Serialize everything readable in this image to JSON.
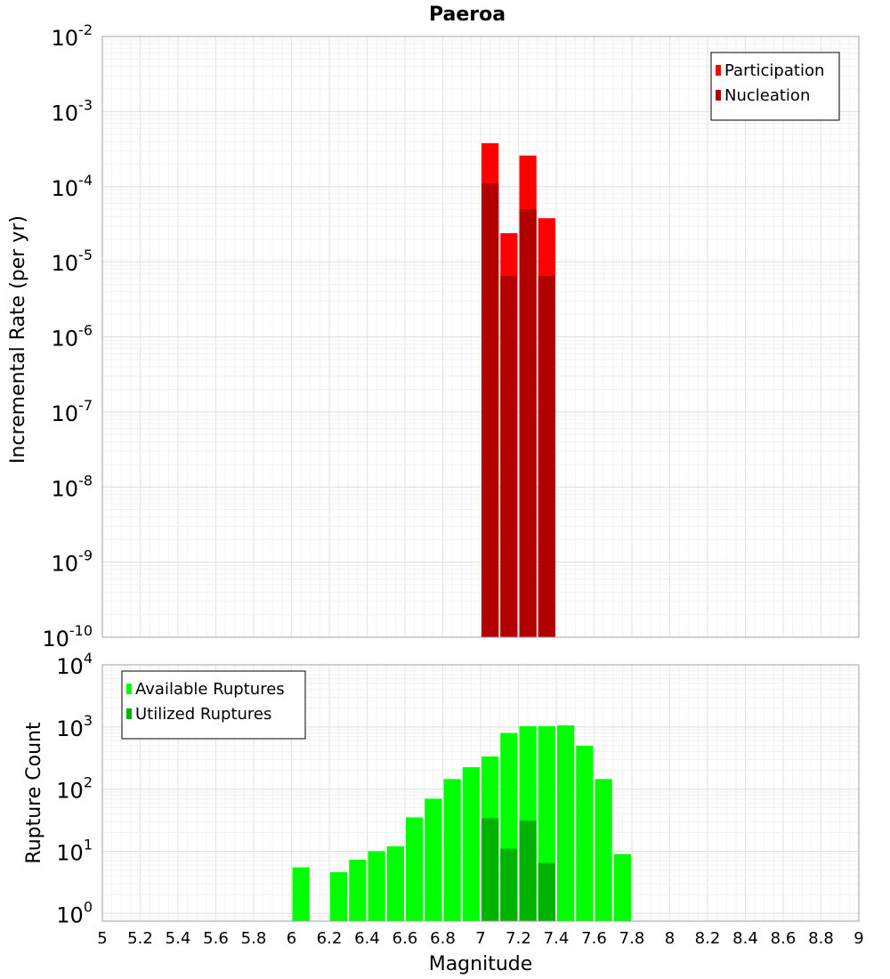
{
  "title": "Paeroa",
  "x_axis": {
    "label": "Magnitude",
    "ticks": [
      "5",
      "5.2",
      "5.4",
      "5.6",
      "5.8",
      "6",
      "6.2",
      "6.4",
      "6.6",
      "6.8",
      "7",
      "7.2",
      "7.4",
      "7.6",
      "7.8",
      "8",
      "8.2",
      "8.4",
      "8.6",
      "8.8",
      "9"
    ]
  },
  "top_axis": {
    "label": "Incremental Rate (per yr)",
    "tick_base": "10",
    "tick_exponents": [
      "-10",
      "-9",
      "-8",
      "-7",
      "-6",
      "-5",
      "-4",
      "-3",
      "-2"
    ]
  },
  "bottom_axis": {
    "label": "Rupture Count",
    "tick_base": "10",
    "tick_exponents": [
      "0",
      "1",
      "2",
      "3",
      "4"
    ]
  },
  "legend_top": [
    {
      "label": "Participation",
      "color": "#ff0000"
    },
    {
      "label": "Nucleation",
      "color": "#b20000"
    }
  ],
  "legend_bottom": [
    {
      "label": "Available Ruptures",
      "color": "#00ff00"
    },
    {
      "label": "Utilized Ruptures",
      "color": "#00b200"
    }
  ],
  "chart_data": [
    {
      "type": "bar",
      "title": "Paeroa",
      "xlabel": "Magnitude",
      "ylabel": "Incremental Rate (per yr)",
      "xlim": [
        5,
        9
      ],
      "ylim": [
        1e-10,
        0.01
      ],
      "yscale": "log",
      "grid": true,
      "legend": "top-right",
      "bin_width": 0.1,
      "series": [
        {
          "name": "Participation",
          "color": "#ff0000",
          "x": [
            7.05,
            7.15,
            7.25,
            7.35
          ],
          "values": [
            0.00038,
            2.4e-05,
            0.00026,
            3.8e-05
          ]
        },
        {
          "name": "Nucleation",
          "color": "#b20000",
          "x": [
            7.05,
            7.15,
            7.25,
            7.35
          ],
          "values": [
            0.00011,
            6.5e-06,
            5e-05,
            6.5e-06
          ]
        }
      ]
    },
    {
      "type": "bar",
      "xlabel": "Magnitude",
      "ylabel": "Rupture Count",
      "xlim": [
        5,
        9
      ],
      "ylim": [
        0.75,
        10000
      ],
      "yscale": "log",
      "grid": true,
      "legend": "top-left",
      "bin_width": 0.1,
      "series": [
        {
          "name": "Available Ruptures",
          "color": "#00ff00",
          "x": [
            6.05,
            6.25,
            6.35,
            6.45,
            6.55,
            6.65,
            6.75,
            6.85,
            6.95,
            7.05,
            7.15,
            7.25,
            7.35,
            7.45,
            7.55,
            7.65,
            7.75
          ],
          "values": [
            5.5,
            4.6,
            7.3,
            10,
            12,
            35,
            70,
            145,
            225,
            335,
            800,
            1030,
            1030,
            1060,
            500,
            145,
            9
          ]
        },
        {
          "name": "Utilized Ruptures",
          "color": "#00b200",
          "x": [
            7.05,
            7.15,
            7.25,
            7.35
          ],
          "values": [
            34,
            11,
            31,
            6.5
          ]
        }
      ]
    }
  ]
}
